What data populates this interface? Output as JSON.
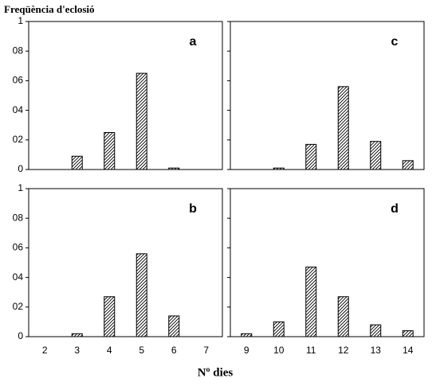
{
  "y_label": "Freqüència d'eclosió",
  "x_label": "Nº dies",
  "chart_data": [
    {
      "type": "bar",
      "label": "a",
      "categories": [
        null,
        null,
        null,
        null,
        null,
        null
      ],
      "values": [
        0,
        0.09,
        0.25,
        0.65,
        0.01,
        0
      ],
      "ylim": [
        0,
        1
      ],
      "yticks": [
        0,
        {
          "value": 0.2,
          "label": "02"
        },
        {
          "value": 0.4,
          "label": "04"
        },
        {
          "value": 0.6,
          "label": "06"
        },
        {
          "value": 0.8,
          "label": "08"
        },
        1
      ],
      "color": "#000000"
    },
    {
      "type": "bar",
      "label": "c",
      "categories": [
        null,
        null,
        null,
        null,
        null,
        null
      ],
      "values": [
        0,
        0.01,
        0.17,
        0.56,
        0.19,
        0.06
      ],
      "ylim": [
        0,
        1
      ],
      "yticks": [
        0,
        0.2,
        0.4,
        0.6,
        0.8,
        1
      ],
      "color": "#000000"
    },
    {
      "type": "bar",
      "label": "b",
      "categories": [
        "2",
        "3",
        "4",
        "5",
        "6",
        "7"
      ],
      "values": [
        0,
        0.02,
        0.27,
        0.56,
        0.14,
        0
      ],
      "ylim": [
        0,
        1
      ],
      "yticks": [
        0,
        {
          "value": 0.2,
          "label": "02"
        },
        {
          "value": 0.4,
          "label": "04"
        },
        {
          "value": 0.6,
          "label": "06"
        },
        {
          "value": 0.8,
          "label": "08"
        },
        1
      ],
      "color": "#000000"
    },
    {
      "type": "bar",
      "label": "d",
      "categories": [
        "9",
        "10",
        "11",
        "12",
        "13",
        "14"
      ],
      "values": [
        0.02,
        0.1,
        0.47,
        0.27,
        0.08,
        0.04
      ],
      "ylim": [
        0,
        1
      ],
      "yticks": [
        0,
        0.2,
        0.4,
        0.6,
        0.8,
        1
      ],
      "color": "#000000"
    }
  ]
}
